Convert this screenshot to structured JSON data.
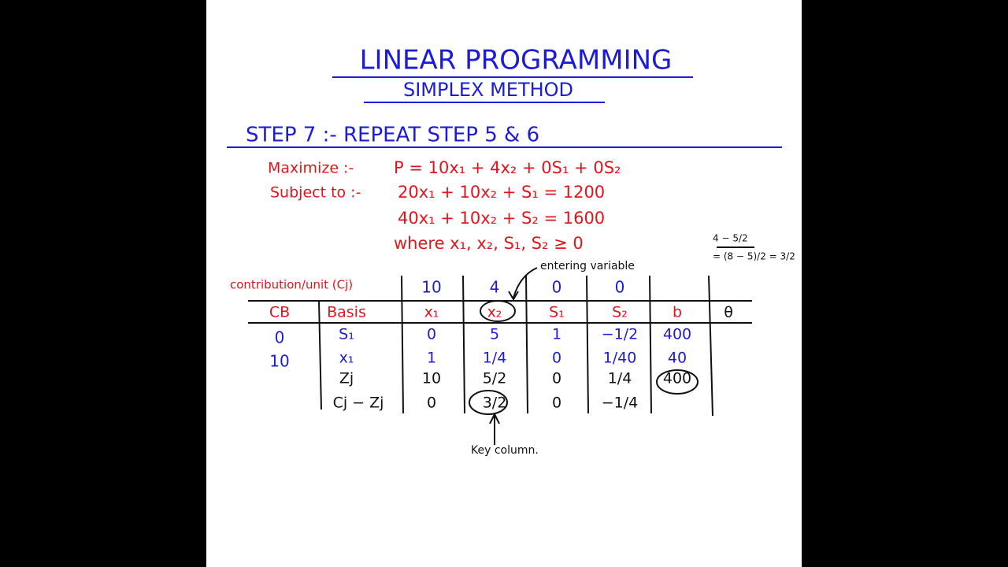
{
  "header": {
    "title": "LINEAR PROGRAMMING",
    "subtitle": "SIMPLEX METHOD"
  },
  "step": "STEP 7 :- REPEAT STEP 5 & 6",
  "problem": {
    "objective_label": "Maximize :-",
    "objective": "P = 10x₁ + 4x₂ + 0S₁ + 0S₂",
    "constraints_label": "Subject to :-",
    "constraints": [
      "20x₁ + 10x₂ + S₁ = 1200",
      "40x₁ + 10x₂ + S₂ = 1600"
    ],
    "nonnegativity": "where x₁, x₂, S₁, S₂ ≥ 0"
  },
  "side_note": [
    "4 − 5/2",
    "= (8 − 5)/2 = 3/2"
  ],
  "table": {
    "cj_label": "contribution/unit (Cj)",
    "cj": [
      "10",
      "4",
      "0",
      "0"
    ],
    "headers": [
      "CB",
      "Basis",
      "x₁",
      "x₂",
      "S₁",
      "S₂",
      "b",
      "θ"
    ],
    "rows": [
      {
        "cb": "0",
        "basis": "S₁",
        "values": [
          "0",
          "5",
          "1",
          "−1/2",
          "400"
        ]
      },
      {
        "cb": "10",
        "basis": "x₁",
        "values": [
          "1",
          "1/4",
          "0",
          "1/40",
          "40"
        ]
      },
      {
        "basis": "Zj",
        "values": [
          "10",
          "5/2",
          "0",
          "1/4",
          "400"
        ]
      },
      {
        "basis": "Cj − Zj",
        "values": [
          "0",
          "3/2",
          "0",
          "−1/4"
        ]
      }
    ]
  },
  "annotations": {
    "entering": "entering variable",
    "key_column": "Key column."
  }
}
